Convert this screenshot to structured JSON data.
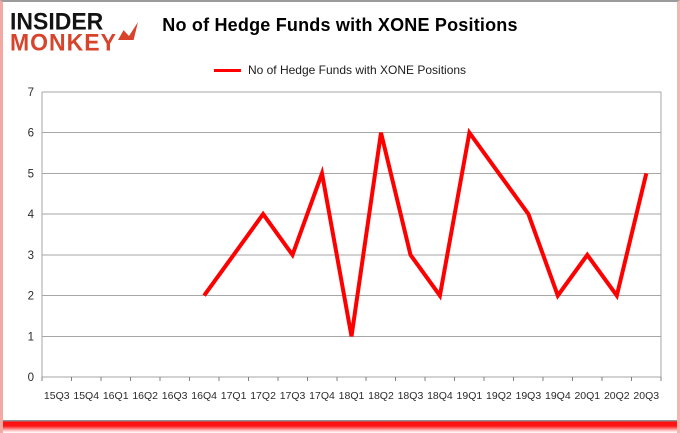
{
  "logo": {
    "line1": "INSIDER",
    "line2": "MONKEY"
  },
  "header": {
    "title": "No of Hedge Funds with XONE Positions"
  },
  "legend": {
    "label": "No of Hedge Funds with XONE Positions"
  },
  "colors": {
    "line": "#ff0000",
    "brand_red": "#d8432c",
    "grid": "#a6a6a6",
    "axis": "#808080",
    "bottom_bar": "#ff1515",
    "side_border": "#f2a9a4"
  },
  "chart_data": {
    "type": "line",
    "title": "No of Hedge Funds with XONE Positions",
    "legend_entries": [
      "No of Hedge Funds with XONE Positions"
    ],
    "legend_position": "top",
    "grid": true,
    "categories": [
      "15Q3",
      "15Q4",
      "16Q1",
      "16Q2",
      "16Q3",
      "16Q4",
      "17Q1",
      "17Q2",
      "17Q3",
      "17Q4",
      "18Q1",
      "18Q2",
      "18Q3",
      "18Q4",
      "19Q1",
      "19Q2",
      "19Q3",
      "19Q4",
      "20Q1",
      "20Q2",
      "20Q3"
    ],
    "series": [
      {
        "name": "No of Hedge Funds with XONE Positions",
        "color": "#ff0000",
        "values": [
          null,
          null,
          null,
          null,
          null,
          2,
          3,
          4,
          3,
          5,
          1,
          6,
          3,
          2,
          6,
          5,
          4,
          2,
          3,
          2,
          5
        ]
      }
    ],
    "xlabel": "",
    "ylabel": "",
    "ylim": [
      0,
      7
    ],
    "y_ticks": [
      0,
      1,
      2,
      3,
      4,
      5,
      6,
      7
    ]
  }
}
